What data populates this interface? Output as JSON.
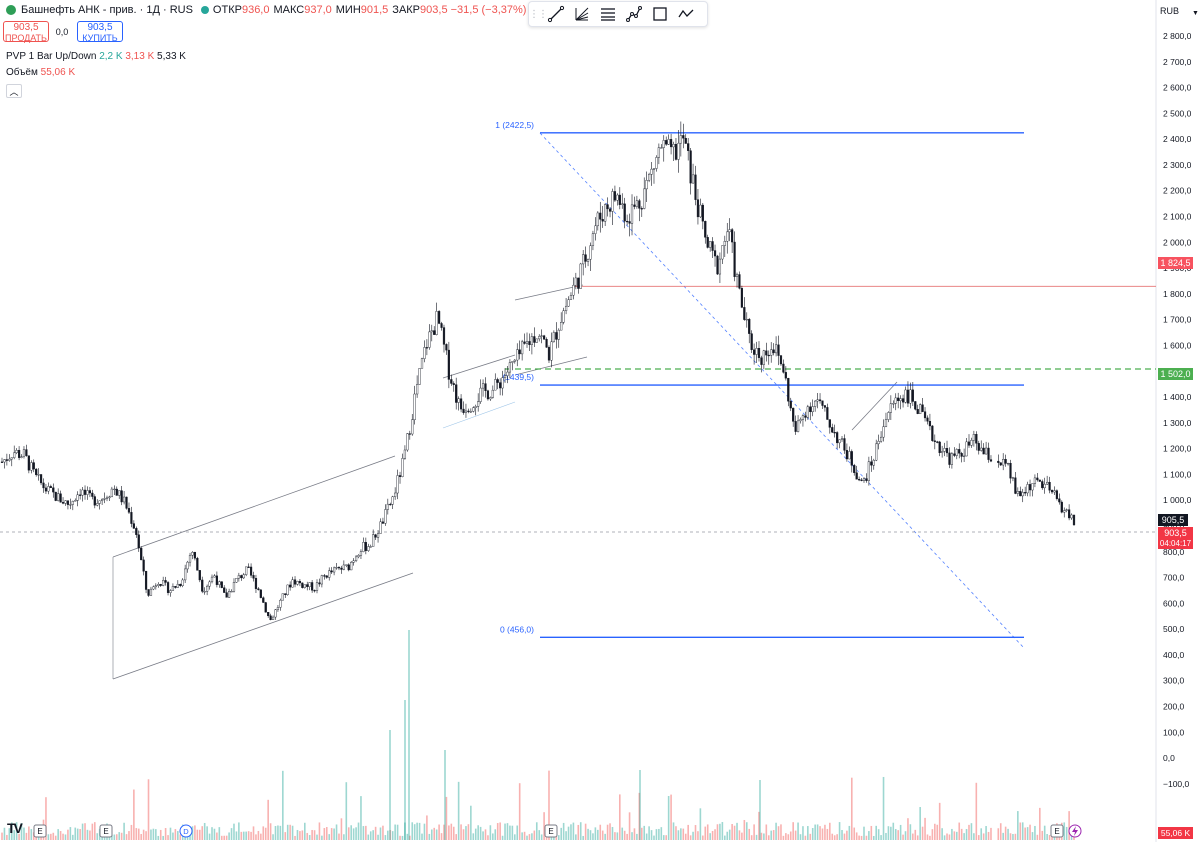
{
  "header": {
    "symbol": "Башнефть АНК - прив. · 1Д · RUS",
    "ohlc": [
      {
        "label": "ОТКР",
        "value": "936,0"
      },
      {
        "label": "МАКС",
        "value": "937,0"
      },
      {
        "label": "МИН",
        "value": "901,5"
      },
      {
        "label": "ЗАКР",
        "value": "903,5 −31,5 (−3,37%)"
      }
    ],
    "sell_price": "903,5",
    "sell_label": "ПРОДАТЬ",
    "spread": "0,0",
    "buy_price": "903,5",
    "buy_label": "КУПИТЬ",
    "indicator1": {
      "name": "PVP 1 Bar Up/Down",
      "up": "2,2 K",
      "down": "3,13 K",
      "total": "5,33 K"
    },
    "indicator2": {
      "name": "Объём",
      "value": "55,06 K"
    },
    "collapse_icon": "chevron-up-icon"
  },
  "toolbar": {
    "tools": [
      "trend-line-icon",
      "fib-fan-icon",
      "fib-retracement-icon",
      "path-icon",
      "rectangle-icon",
      "polyline-icon"
    ]
  },
  "axis": {
    "currency": "RUB",
    "menu_icon": "chevron-down-icon",
    "labels": [
      "2 800,0",
      "2 700,0",
      "2 600,0",
      "2 500,0",
      "2 400,0",
      "2 300,0",
      "2 200,0",
      "2 100,0",
      "2 000,0",
      "1 900,0",
      "1 800,0",
      "1 700,0",
      "1 600,0",
      "1 500,0",
      "1 400,0",
      "1 300,0",
      "1 200,0",
      "1 100,0",
      "1 000,0",
      "900,0",
      "800,0",
      "700,0",
      "600,0",
      "500,0",
      "400,0",
      "300,0",
      "200,0",
      "100,0",
      "0,0",
      "−100,0"
    ],
    "line_tag_1824": "1 824,5",
    "line_tag_1502": "1 502,0",
    "crosshair_price": "905,5",
    "last_price": "903,5",
    "countdown": "04:04:17",
    "volume_tag": "55,06 K"
  },
  "chart_data": {
    "type": "candlestick",
    "y_range": [
      -150,
      2870
    ],
    "colors": {
      "up": "#26a69a",
      "down": "#ef5350",
      "fib": "#2962ff",
      "line_red": "#e57373",
      "line_green": "#4caf50"
    },
    "fib_levels": [
      {
        "label": "1 (2422,5)",
        "price": 2422.5
      },
      {
        "label": "(1439,5)",
        "price": 1439.5
      },
      {
        "label": "0 (456,0)",
        "price": 456.0
      }
    ],
    "horizontal_lines": [
      {
        "price": 1824.5,
        "style": "solid",
        "color": "#e57373"
      },
      {
        "price": 1502.0,
        "style": "dashed",
        "color": "#4caf50"
      }
    ],
    "approx_price_path": [
      [
        1140
      ],
      [
        1180
      ],
      [
        1165
      ],
      [
        1080
      ],
      [
        1030
      ],
      [
        1000
      ],
      [
        975
      ],
      [
        1030
      ],
      [
        990
      ],
      [
        1000
      ],
      [
        1040
      ],
      [
        980
      ],
      [
        870
      ],
      [
        620
      ],
      [
        680
      ],
      [
        640
      ],
      [
        670
      ],
      [
        800
      ],
      [
        640
      ],
      [
        700
      ],
      [
        610
      ],
      [
        680
      ],
      [
        720
      ],
      [
        640
      ],
      [
        520
      ],
      [
        600
      ],
      [
        680
      ],
      [
        660
      ],
      [
        650
      ],
      [
        700
      ],
      [
        720
      ],
      [
        730
      ],
      [
        800
      ],
      [
        820
      ],
      [
        900
      ],
      [
        1000
      ],
      [
        1150
      ],
      [
        1400
      ],
      [
        1600
      ],
      [
        1700
      ],
      [
        1500
      ],
      [
        1350
      ],
      [
        1370
      ],
      [
        1410
      ],
      [
        1420
      ],
      [
        1480
      ],
      [
        1530
      ],
      [
        1600
      ],
      [
        1650
      ],
      [
        1560
      ],
      [
        1700
      ],
      [
        1800
      ],
      [
        1900
      ],
      [
        2050
      ],
      [
        2130
      ],
      [
        2180
      ],
      [
        2100
      ],
      [
        2150
      ],
      [
        2250
      ],
      [
        2370
      ],
      [
        2330
      ],
      [
        2400
      ],
      [
        2200
      ],
      [
        2000
      ],
      [
        1900
      ],
      [
        2050
      ],
      [
        1800
      ],
      [
        1600
      ],
      [
        1550
      ],
      [
        1600
      ],
      [
        1500
      ],
      [
        1250
      ],
      [
        1350
      ],
      [
        1380
      ],
      [
        1300
      ],
      [
        1220
      ],
      [
        1150
      ],
      [
        1050
      ],
      [
        1150
      ],
      [
        1300
      ],
      [
        1380
      ],
      [
        1410
      ],
      [
        1350
      ],
      [
        1260
      ],
      [
        1200
      ],
      [
        1150
      ],
      [
        1180
      ],
      [
        1220
      ],
      [
        1170
      ],
      [
        1150
      ],
      [
        1120
      ],
      [
        1000
      ],
      [
        1050
      ],
      [
        1060
      ],
      [
        1020
      ],
      [
        960
      ],
      [
        905
      ]
    ]
  }
}
